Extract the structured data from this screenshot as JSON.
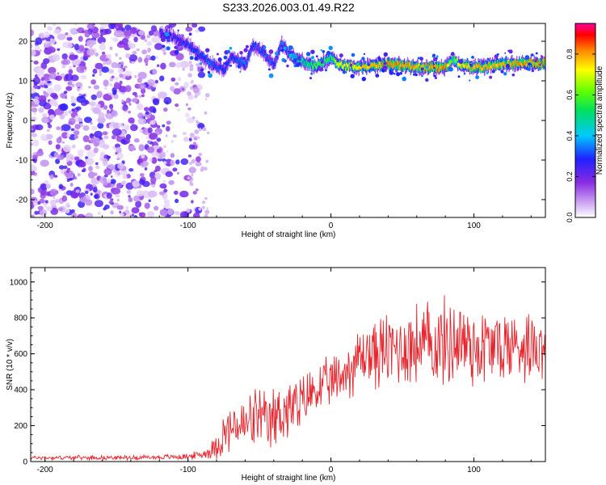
{
  "title": "S233.2026.003.01.49.R22",
  "chart_data": [
    {
      "type": "heatmap",
      "title": "S233.2026.003.01.49.R22",
      "xlabel": "Height of straight line (km)",
      "ylabel": "Frequency (Hz)",
      "xlim": [
        -210,
        150
      ],
      "ylim": [
        -24.5,
        24.5
      ],
      "x_ticks": [
        -200,
        -100,
        0,
        100
      ],
      "y_ticks": [
        20,
        10,
        0,
        -10,
        -20
      ],
      "noise_region_x": [
        -210,
        -90
      ],
      "ridge": {
        "x": [
          -120,
          -110,
          -100,
          -95,
          -90,
          -85,
          -80,
          -75,
          -70,
          -65,
          -60,
          -55,
          -50,
          -45,
          -40,
          -35,
          -30,
          -25,
          -20,
          -15,
          -10,
          -5,
          0,
          5,
          10,
          20,
          40,
          60,
          80,
          85,
          90,
          100,
          120,
          150
        ],
        "freq": [
          22,
          21,
          19,
          17.5,
          16,
          14.5,
          13.5,
          13,
          16,
          15,
          14,
          19,
          18,
          16,
          14,
          19.5,
          17,
          15.5,
          15,
          14,
          14,
          15,
          16,
          14,
          13.8,
          13.5,
          14.3,
          13.4,
          13.4,
          15.5,
          14,
          13.3,
          14.3,
          14.5
        ],
        "amplitude": [
          0.25,
          0.25,
          0.3,
          0.3,
          0.3,
          0.35,
          0.3,
          0.3,
          0.3,
          0.35,
          0.35,
          0.3,
          0.35,
          0.3,
          0.3,
          0.35,
          0.4,
          0.5,
          0.55,
          0.6,
          0.65,
          0.6,
          0.6,
          0.85,
          0.85,
          0.85,
          0.95,
          0.9,
          0.95,
          0.6,
          0.85,
          0.9,
          0.9,
          0.95
        ]
      },
      "colorbar": {
        "label": "Normalized spectral amplitude",
        "range": [
          0,
          0.95
        ],
        "ticks": [
          "0.0",
          "0.2",
          "0.4",
          "0.6",
          "0.8"
        ],
        "tick_values": [
          0,
          0.2,
          0.4,
          0.6,
          0.8
        ]
      }
    },
    {
      "type": "line",
      "xlabel": "Height of straight line (km)",
      "ylabel": "SNR (10 * v/v)",
      "xlim": [
        -210,
        150
      ],
      "ylim": [
        0,
        1080
      ],
      "x_ticks": [
        -200,
        -100,
        0,
        100
      ],
      "y_ticks": [
        0,
        200,
        400,
        600,
        800,
        1000
      ],
      "color": "#e8242c",
      "series": [
        {
          "name": "SNR",
          "x": [
            -210,
            -180,
            -150,
            -120,
            -100,
            -90,
            -85,
            -80,
            -75,
            -70,
            -65,
            -60,
            -55,
            -50,
            -45,
            -40,
            -35,
            -30,
            -25,
            -20,
            -15,
            -10,
            -5,
            0,
            5,
            10,
            15,
            20,
            25,
            30,
            40,
            50,
            60,
            70,
            80,
            90,
            100,
            110,
            120,
            130,
            140,
            150
          ],
          "mean": [
            22,
            22,
            22,
            24,
            28,
            40,
            55,
            90,
            150,
            180,
            200,
            190,
            230,
            250,
            190,
            230,
            280,
            290,
            290,
            320,
            380,
            400,
            420,
            440,
            460,
            500,
            530,
            580,
            600,
            600,
            620,
            640,
            650,
            650,
            660,
            680,
            640,
            640,
            640,
            650,
            660,
            650
          ],
          "spread": [
            12,
            12,
            12,
            14,
            18,
            25,
            40,
            80,
            120,
            140,
            150,
            160,
            170,
            180,
            170,
            190,
            190,
            190,
            180,
            160,
            150,
            140,
            140,
            140,
            150,
            160,
            170,
            180,
            190,
            200,
            220,
            230,
            240,
            250,
            250,
            270,
            250,
            230,
            220,
            210,
            200,
            200
          ]
        }
      ]
    }
  ]
}
